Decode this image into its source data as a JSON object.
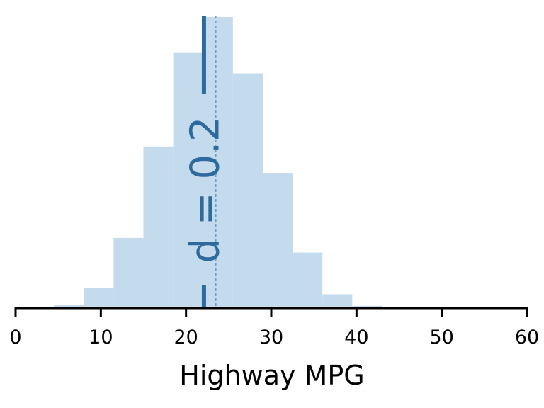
{
  "chart_data": {
    "type": "bar",
    "xlabel": "Highway MPG",
    "ylabel": "",
    "xlim": [
      0,
      60
    ],
    "xticks": [
      0,
      10,
      20,
      30,
      40,
      50,
      60
    ],
    "grid": false,
    "bins": [
      {
        "x0": 4.5,
        "x1": 8.0,
        "value": 0.004
      },
      {
        "x0": 8.0,
        "x1": 11.5,
        "value": 0.028
      },
      {
        "x0": 11.5,
        "x1": 15.0,
        "value": 0.096
      },
      {
        "x0": 15.0,
        "x1": 18.5,
        "value": 0.221
      },
      {
        "x0": 18.5,
        "x1": 22.0,
        "value": 0.349
      },
      {
        "x0": 22.0,
        "x1": 25.5,
        "value": 0.398
      },
      {
        "x0": 25.5,
        "x1": 29.0,
        "value": 0.321
      },
      {
        "x0": 29.0,
        "x1": 32.5,
        "value": 0.185
      },
      {
        "x0": 32.5,
        "x1": 36.0,
        "value": 0.076
      },
      {
        "x0": 36.0,
        "x1": 39.5,
        "value": 0.019
      },
      {
        "x0": 39.5,
        "x1": 43.0,
        "value": 0.003
      }
    ],
    "ylim": [
      0,
      0.4
    ],
    "mean_line": 23.5,
    "marker_line": 22.1,
    "annotation": "d = 0.2",
    "colors": {
      "bars": "#c3dbec",
      "accent": "#2f6a9e",
      "mean_line": "#6c9cc8",
      "axis": "#000000"
    }
  }
}
